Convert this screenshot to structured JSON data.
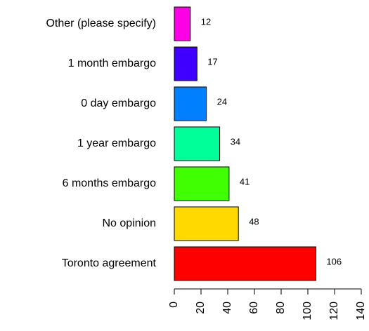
{
  "chart_data": {
    "type": "barh",
    "categories": [
      "Other (please specify)",
      "1 month embargo",
      "0 day embargo",
      "1 year embargo",
      "6 months embargo",
      "No opinion",
      "Toronto agreement"
    ],
    "values": [
      12,
      17,
      24,
      34,
      41,
      48,
      106
    ],
    "colors": [
      "#ff00e6",
      "#4000ff",
      "#0080ff",
      "#00ff99",
      "#40ff00",
      "#ffd900",
      "#ff0000"
    ],
    "xlim": [
      0,
      140
    ],
    "xticks": [
      0,
      20,
      40,
      60,
      80,
      100,
      120,
      140
    ],
    "grid": false
  }
}
